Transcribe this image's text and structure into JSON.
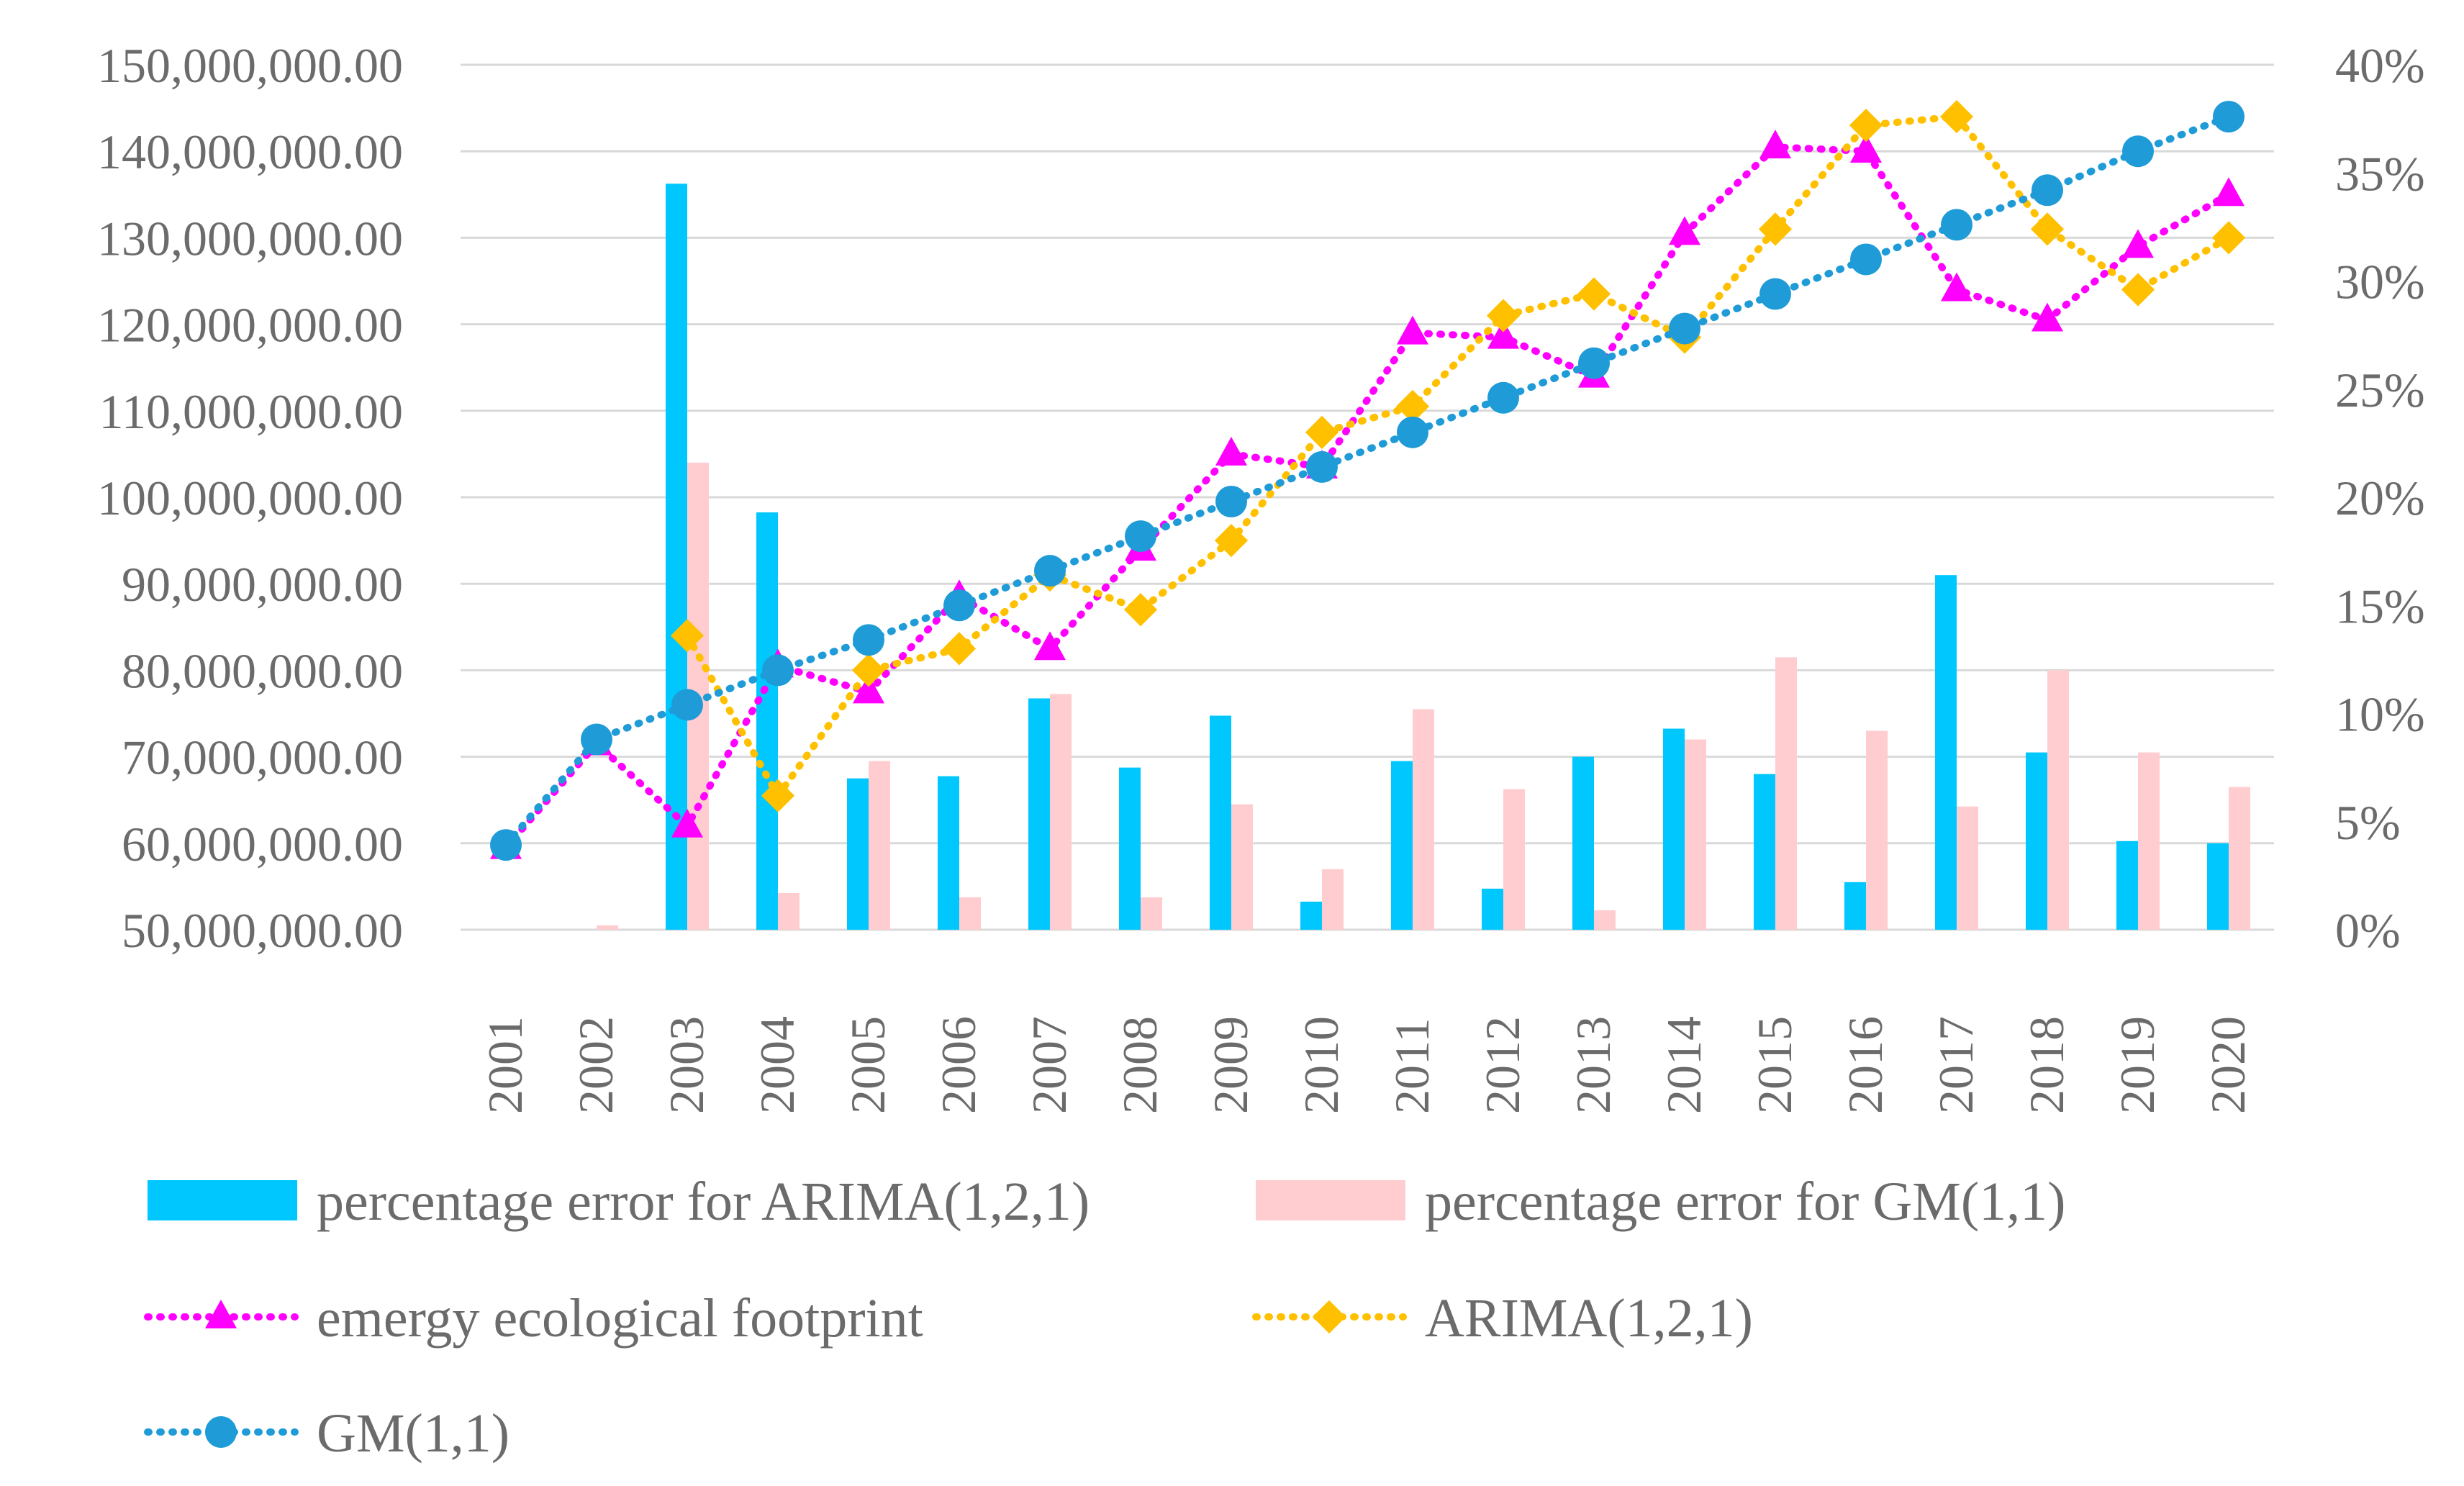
{
  "chart_data": {
    "type": "bar+line",
    "title": "",
    "categories": [
      "2001",
      "2002",
      "2003",
      "2004",
      "2005",
      "2006",
      "2007",
      "2008",
      "2009",
      "2010",
      "2011",
      "2012",
      "2013",
      "2014",
      "2015",
      "2016",
      "2017",
      "2018",
      "2019",
      "2020"
    ],
    "y_left": {
      "min": 50000000,
      "max": 150000000,
      "step": 10000000,
      "tick_labels": [
        "50,000,000.00",
        "60,000,000.00",
        "70,000,000.00",
        "80,000,000.00",
        "90,000,000.00",
        "100,000,000.00",
        "110,000,000.00",
        "120,000,000.00",
        "130,000,000.00",
        "140,000,000.00",
        "150,000,000.00"
      ]
    },
    "y_right": {
      "min": 0,
      "max": 0.4,
      "step": 0.05,
      "tick_labels": [
        "0%",
        "5%",
        "10%",
        "15%",
        "20%",
        "25%",
        "30%",
        "35%",
        "40%"
      ]
    },
    "bar_series": [
      {
        "name": "percentage error for ARIMA(1,2,1)",
        "axis": "right",
        "color": "#00c8ff",
        "values": [
          0,
          0,
          0.345,
          0.193,
          0.07,
          0.071,
          0.107,
          0.075,
          0.099,
          0.013,
          0.078,
          0.019,
          0.08,
          0.093,
          0.072,
          0.022,
          0.164,
          0.082,
          0.041,
          0.04
        ]
      },
      {
        "name": "percentage error for GM(1,1)",
        "axis": "right",
        "color": "#ffcdd0",
        "values": [
          0,
          0.002,
          0.216,
          0.017,
          0.078,
          0.015,
          0.109,
          0.015,
          0.058,
          0.028,
          0.102,
          0.065,
          0.009,
          0.088,
          0.126,
          0.092,
          0.057,
          0.12,
          0.082,
          0.066
        ]
      }
    ],
    "line_series": [
      {
        "name": "emergy ecological footprint",
        "axis": "left",
        "color": "#ff00ff",
        "marker": "triangle",
        "values": [
          59500000,
          71500000,
          62000000,
          80500000,
          77500000,
          88500000,
          82500000,
          94000000,
          105000000,
          103500000,
          119000000,
          118500000,
          114000000,
          130500000,
          140500000,
          140000000,
          124000000,
          120500000,
          129000000,
          135000000
        ]
      },
      {
        "name": "ARIMA(1,2,1)",
        "axis": "left",
        "color": "#ffc000",
        "marker": "diamond",
        "values": [
          null,
          null,
          84000000,
          65500000,
          80000000,
          82500000,
          91000000,
          87000000,
          95000000,
          107500000,
          110500000,
          121000000,
          123500000,
          118500000,
          131000000,
          143000000,
          144000000,
          131000000,
          124000000,
          130000000
        ]
      },
      {
        "name": "GM(1,1)",
        "axis": "left",
        "color": "#1f9bd7",
        "marker": "circle",
        "values": [
          59800000,
          72000000,
          76000000,
          80000000,
          83500000,
          87500000,
          91500000,
          95500000,
          99500000,
          103500000,
          107500000,
          111500000,
          115500000,
          119500000,
          123500000,
          127500000,
          131500000,
          135500000,
          140000000,
          144000000
        ]
      }
    ],
    "legend_position": "bottom"
  }
}
